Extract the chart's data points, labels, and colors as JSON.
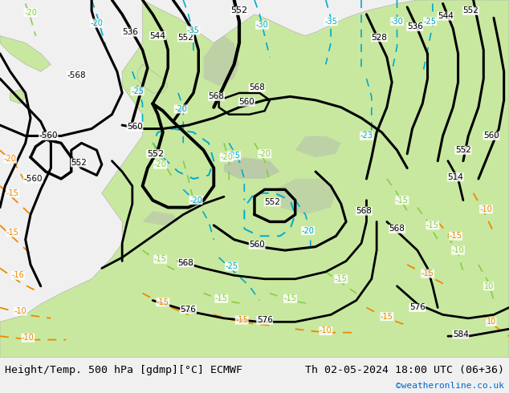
{
  "title_left": "Height/Temp. 500 hPa [gdmp][°C] ECMWF",
  "title_right": "Th 02-05-2024 18:00 UTC (06+36)",
  "watermark": "©weatheronline.co.uk",
  "ocean_color": "#e8e8e8",
  "land_color": "#c8e8a0",
  "bottom_bar_color": "#f0f0f0",
  "font_size_title": 9.5,
  "font_size_watermark": 8
}
